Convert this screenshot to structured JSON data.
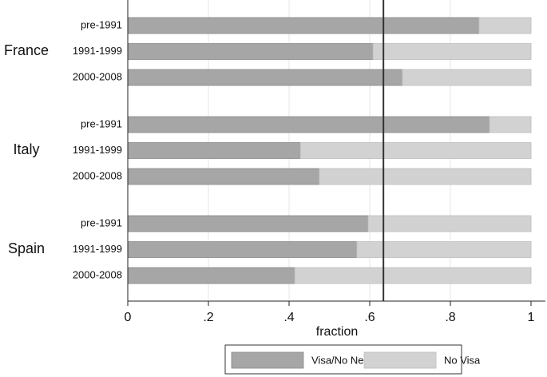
{
  "chart_data": {
    "type": "stacked-barh",
    "groups": [
      "France",
      "Italy",
      "Spain"
    ],
    "categories": [
      "pre-1991",
      "1991-1999",
      "2000-2008",
      "pre-1991",
      "1991-1999",
      "2000-2008",
      "pre-1991",
      "1991-1999",
      "2000-2008"
    ],
    "series": [
      {
        "name": "Visa/No Need",
        "color": "#a6a6a6",
        "values": [
          0.871,
          0.608,
          0.681,
          0.897,
          0.428,
          0.475,
          0.596,
          0.568,
          0.414
        ]
      },
      {
        "name": "No Visa",
        "color": "#d2d2d2",
        "values": [
          0.129,
          0.392,
          0.319,
          0.103,
          0.572,
          0.525,
          0.404,
          0.432,
          0.586
        ]
      }
    ],
    "x_label": "fraction",
    "xlim": [
      0,
      1
    ],
    "xticks": [
      0,
      {
        "value": 0.2,
        "label": ".2"
      },
      {
        "value": 0.4,
        "label": ".4"
      },
      {
        "value": 0.6,
        "label": ".6"
      },
      {
        "value": 0.8,
        "label": ".8"
      },
      1
    ],
    "reference_line": 0.634,
    "grid": true,
    "legend": "bottom"
  }
}
